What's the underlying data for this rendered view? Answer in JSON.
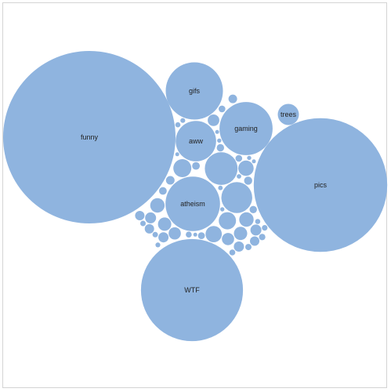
{
  "chart_data": {
    "type": "bubble",
    "series_color": "#8fb4df",
    "labeled_bubbles": [
      {
        "label": "funny",
        "value": 100
      },
      {
        "label": "pics",
        "value": 60
      },
      {
        "label": "WTF",
        "value": 35
      },
      {
        "label": "gifs",
        "value": 11
      },
      {
        "label": "atheism",
        "value": 10
      },
      {
        "label": "gaming",
        "value": 9.5
      },
      {
        "label": "aww",
        "value": 5.5
      },
      {
        "label": "trees",
        "value": 1.5
      }
    ],
    "unlabeled_bubble_values": [
      3.2,
      3.6,
      1.1,
      1.0,
      0.9,
      0.8,
      0.7,
      0.7,
      0.6,
      0.6,
      0.5,
      0.5,
      0.45,
      0.4,
      0.4,
      0.35,
      0.35,
      0.3,
      0.3,
      0.3,
      0.25,
      0.25,
      0.22,
      0.2,
      0.2,
      0.18,
      0.18,
      0.16,
      0.15,
      0.15,
      0.14,
      0.13,
      0.12,
      0.12,
      0.11,
      0.1,
      0.1,
      0.09,
      0.09,
      0.08,
      0.08,
      0.07,
      0.07,
      0.06,
      0.06,
      0.06,
      0.05,
      0.05,
      0.05,
      0.05
    ]
  }
}
